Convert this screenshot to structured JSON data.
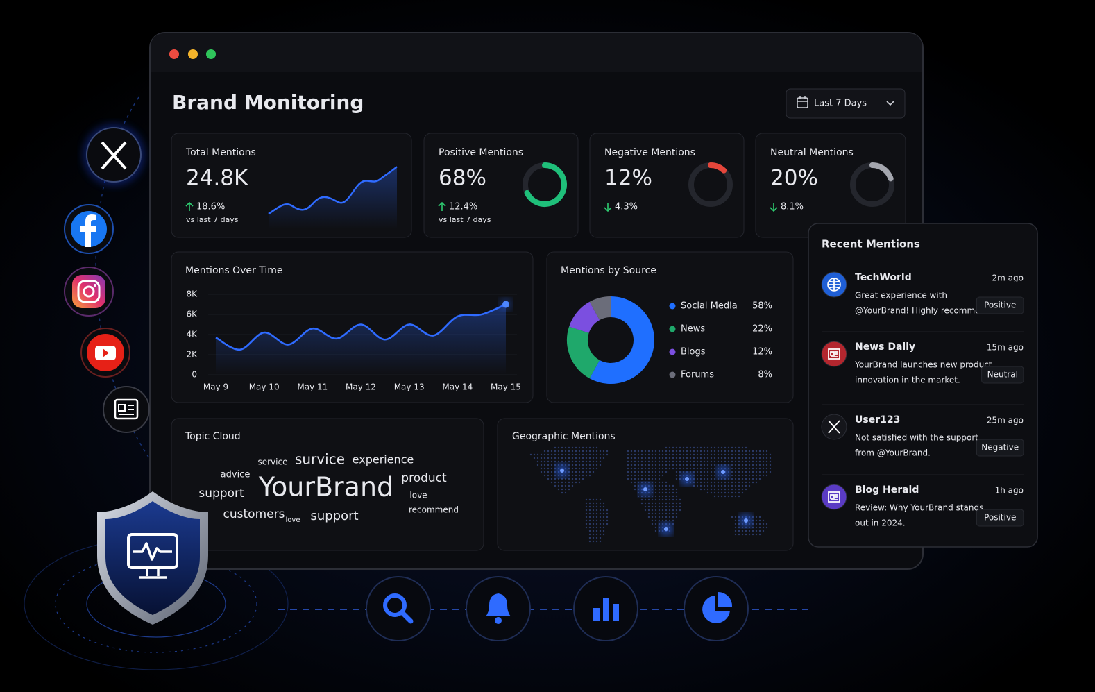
{
  "header": {
    "title": "Brand Monitoring",
    "date_filter": "Last 7 Days"
  },
  "kpis": [
    {
      "label": "Total Mentions",
      "value_label": "24.8K",
      "change": "18.6%",
      "direction": "up",
      "note": "vs last 7 days"
    },
    {
      "label": "Positive Mentions",
      "value": 68,
      "value_label": "68%",
      "change": "12.4%",
      "direction": "up",
      "note": "vs last 7 days",
      "color": "#1fbf7a"
    },
    {
      "label": "Negative Mentions",
      "value": 12,
      "value_label": "12%",
      "change": "4.3%",
      "direction": "down",
      "color": "#e5463b"
    },
    {
      "label": "Neutral Mentions",
      "value": 20,
      "value_label": "20%",
      "change": "8.1%",
      "direction": "down",
      "color": "#a4a6ae"
    }
  ],
  "chart_data": [
    {
      "type": "line",
      "title": "Mentions Over Time",
      "categories": [
        "May 9",
        null,
        "May 10",
        null,
        "May 11",
        null,
        "May 12",
        null,
        "May 13",
        null,
        "May 14",
        null,
        "May 15"
      ],
      "values": [
        3700,
        2500,
        4200,
        3000,
        4600,
        3600,
        5000,
        3500,
        5000,
        3900,
        5800,
        6000,
        7000
      ],
      "ylim": [
        0,
        8000
      ],
      "yticks": [
        0,
        {
          "value": 2000,
          "label": "2K"
        },
        {
          "value": 4000,
          "label": "4K"
        },
        {
          "value": 6000,
          "label": "6K"
        },
        {
          "value": 8000,
          "label": "8K"
        }
      ],
      "color": "#2f6bff"
    },
    {
      "type": "pie",
      "title": "Mentions by Source",
      "categories": [
        "Social Media",
        "News",
        "Blogs",
        "Forums"
      ],
      "values": [
        58,
        22,
        12,
        8
      ],
      "value_labels": [
        "58%",
        "22%",
        "12%",
        "8%"
      ],
      "colors": [
        "#1f6fff",
        "#1fa86b",
        "#7b4fe0",
        "#6b6d7a"
      ]
    }
  ],
  "topic_cloud": {
    "title": "Topic Cloud",
    "words": [
      "service",
      "survice",
      "experience",
      "advice",
      "product",
      "YourBrand",
      "support",
      "love",
      "customers",
      "love",
      "support",
      "recommend"
    ]
  },
  "geographic": {
    "title": "Geographic Mentions"
  },
  "recent_mentions": {
    "title": "Recent Mentions",
    "items": [
      {
        "source": "TechWorld",
        "time": "2m ago",
        "lines": [
          "Great experience with",
          "@YourBrand! Highly recommended."
        ],
        "sentiment": "Positive",
        "color": "#2ecc71"
      },
      {
        "source": "News Daily",
        "time": "15m ago",
        "lines": [
          "YourBrand launches new product",
          "innovation in the market."
        ],
        "sentiment": "Neutral",
        "color": "#c9cad0"
      },
      {
        "source": "User123",
        "time": "25m ago",
        "lines": [
          "Not satisfied with the support",
          "from @YourBrand."
        ],
        "sentiment": "Negative",
        "color": "#f0524a"
      },
      {
        "source": "Blog Herald",
        "time": "1h ago",
        "lines": [
          "Review: Why YourBrand stands",
          "out in 2024."
        ],
        "sentiment": "Positive",
        "color": "#2ecc71"
      }
    ]
  }
}
